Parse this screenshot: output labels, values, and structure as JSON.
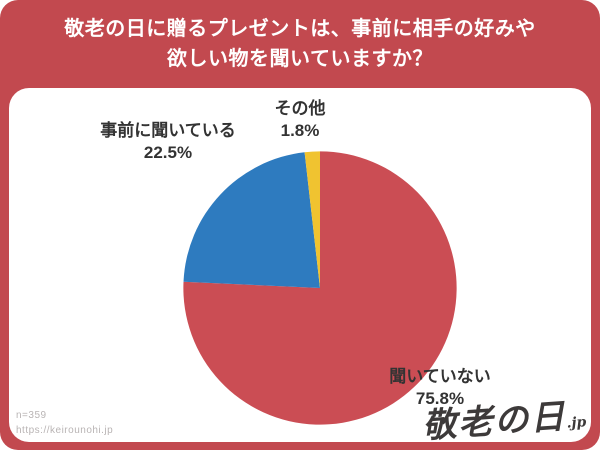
{
  "page": {
    "bg_color": "#c2494f",
    "card_bg": "#ffffff"
  },
  "header": {
    "title_line1": "敬老の日に贈るプレゼントは、事前に相手の好みや",
    "title_line2": "欲しい物を聞いていますか？"
  },
  "chart_data": {
    "type": "pie",
    "title": "敬老の日に贈るプレゼントは、事前に相手の好みや欲しい物を聞いていますか？",
    "start_angle": "top",
    "direction": "clockwise",
    "legend_position": "labels-outside",
    "slices": [
      {
        "label": "聞いていない",
        "value": 75.8,
        "pct_label": "75.8%",
        "color": "#cb4d54"
      },
      {
        "label": "事前に聞いている",
        "value": 22.5,
        "pct_label": "22.5%",
        "color": "#2e7bbf"
      },
      {
        "label": "その他",
        "value": 1.8,
        "pct_label": "1.8%",
        "color": "#f0c330"
      }
    ]
  },
  "footer": {
    "sample": "n=359",
    "url": "https://keirounohi.jp",
    "logo": "敬老の日",
    "logo_suffix": ".jp"
  }
}
